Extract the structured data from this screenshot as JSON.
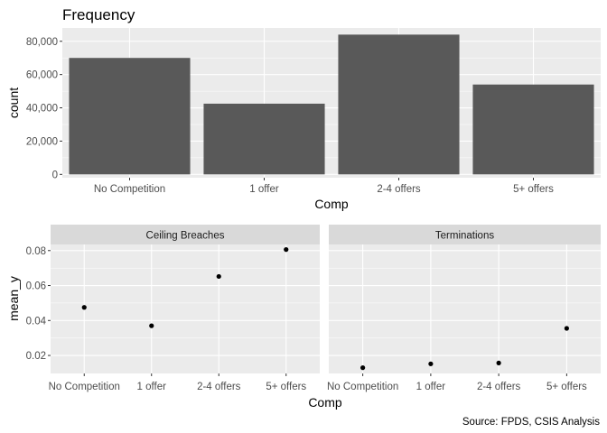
{
  "caption": "Source: FPDS, CSIS Analysis",
  "colors": {
    "panel_bg": "#EBEBEB",
    "grid": "#FFFFFF",
    "bar": "#595959",
    "point": "#000000",
    "strip_bg": "#D9D9D9",
    "tick_text": "#4D4D4D"
  },
  "chart_data": [
    {
      "type": "bar",
      "title": "Frequency",
      "xlabel": "Comp",
      "ylabel": "count",
      "categories": [
        "No Competition",
        "1 offer",
        "2-4 offers",
        "5+ offers"
      ],
      "values": [
        70000,
        42500,
        84000,
        54000
      ],
      "ylim": [
        -2000,
        88000
      ],
      "yticks": [
        0,
        20000,
        40000,
        60000,
        80000
      ],
      "ytick_labels": [
        "0",
        "20,000",
        "40,000",
        "60,000",
        "80,000"
      ],
      "grid": true
    },
    {
      "type": "scatter",
      "xlabel": "Comp",
      "ylabel": "mean_y",
      "categories": [
        "No Competition",
        "1 offer",
        "2-4 offers",
        "5+ offers"
      ],
      "ylim": [
        0.0097,
        0.0835
      ],
      "yticks": [
        0.02,
        0.04,
        0.06,
        0.08
      ],
      "ytick_labels": [
        "0.02",
        "0.04",
        "0.06",
        "0.08"
      ],
      "grid": true,
      "facets": [
        {
          "strip": "Ceiling Breaches",
          "values": [
            0.0475,
            0.037,
            0.0652,
            0.0806
          ]
        },
        {
          "strip": "Terminations",
          "values": [
            0.013,
            0.0152,
            0.0157,
            0.0355
          ]
        }
      ]
    }
  ]
}
